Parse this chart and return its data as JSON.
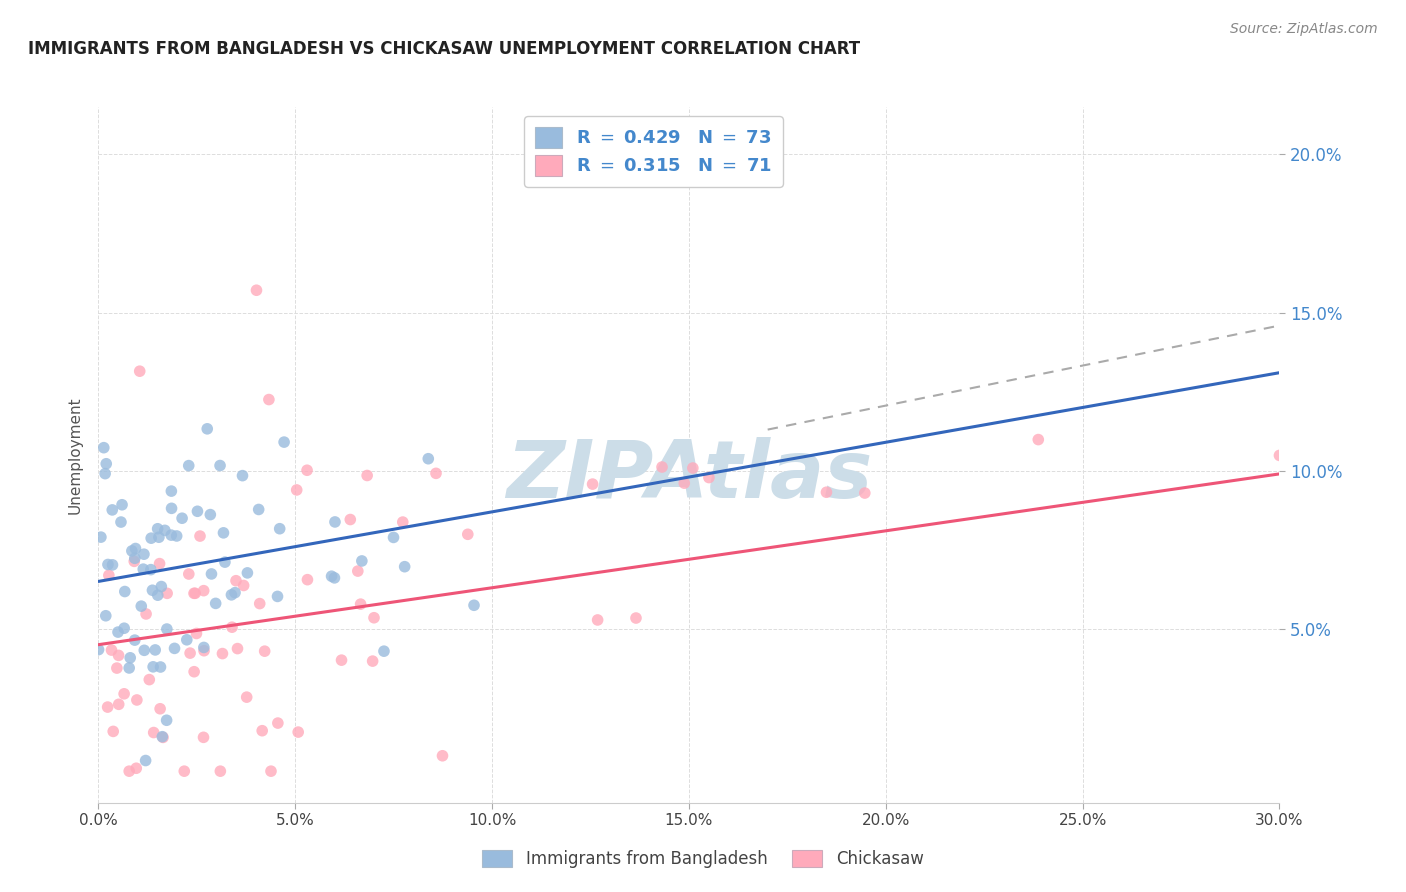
{
  "title": "IMMIGRANTS FROM BANGLADESH VS CHICKASAW UNEMPLOYMENT CORRELATION CHART",
  "source": "Source: ZipAtlas.com",
  "ylabel": "Unemployment",
  "xlim": [
    0.0,
    0.3
  ],
  "ylim": [
    -0.005,
    0.215
  ],
  "blue_color": "#99BBDD",
  "pink_color": "#FFAABB",
  "blue_line_color": "#3366BB",
  "pink_line_color": "#EE5577",
  "dashed_line_color": "#AAAAAA",
  "watermark": "ZIPAtlas",
  "watermark_color": "#CCDDE8",
  "background_color": "#FFFFFF",
  "grid_color": "#DDDDDD",
  "title_fontsize": 12,
  "source_fontsize": 10,
  "seed": 7,
  "N_blue": 73,
  "N_pink": 71,
  "R_blue": 0.429,
  "R_pink": 0.315,
  "blue_intercept": 0.065,
  "blue_slope": 0.22,
  "pink_intercept": 0.045,
  "pink_slope": 0.18,
  "x_tick_vals": [
    0.0,
    0.05,
    0.1,
    0.15,
    0.2,
    0.25,
    0.3
  ],
  "x_tick_labels": [
    "0.0%",
    "5.0%",
    "10.0%",
    "15.0%",
    "20.0%",
    "25.0%",
    "30.0%"
  ],
  "y_tick_vals": [
    0.05,
    0.1,
    0.15,
    0.2
  ],
  "y_tick_labels": [
    "5.0%",
    "10.0%",
    "15.0%",
    "20.0%"
  ]
}
